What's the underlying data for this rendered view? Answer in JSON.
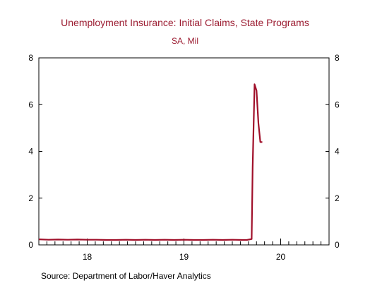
{
  "chart_data": {
    "type": "line",
    "title": "Unemployment Insurance: Initial Claims, State Programs",
    "subtitle": "SA, Mil",
    "source": "Source:  Department of Labor/Haver Analytics",
    "ylim": [
      0,
      8
    ],
    "yticks": [
      0,
      2,
      4,
      6,
      8
    ],
    "ytick_labels": [
      "0",
      "2",
      "4",
      "6",
      "8"
    ],
    "xlim": [
      2017.5,
      2020.5
    ],
    "xticks": [
      2018,
      2019,
      2020
    ],
    "xtick_labels": [
      "18",
      "19",
      "20"
    ],
    "grid": false,
    "series": [
      {
        "color": "#a0102a",
        "x": [
          2017.5,
          2017.6,
          2017.7,
          2017.8,
          2017.9,
          2018.0,
          2018.1,
          2018.2,
          2018.3,
          2018.4,
          2018.5,
          2018.6,
          2018.7,
          2018.8,
          2018.9,
          2019.0,
          2019.1,
          2019.2,
          2019.3,
          2019.4,
          2019.5,
          2019.6,
          2019.65,
          2019.7,
          2019.71,
          2019.73,
          2019.75,
          2019.77,
          2019.79,
          2019.81
        ],
        "values": [
          0.24,
          0.22,
          0.23,
          0.22,
          0.23,
          0.22,
          0.22,
          0.21,
          0.21,
          0.22,
          0.21,
          0.22,
          0.21,
          0.22,
          0.21,
          0.22,
          0.21,
          0.21,
          0.22,
          0.21,
          0.22,
          0.21,
          0.21,
          0.25,
          3.3,
          6.87,
          6.6,
          5.2,
          4.4,
          4.4
        ]
      }
    ]
  }
}
